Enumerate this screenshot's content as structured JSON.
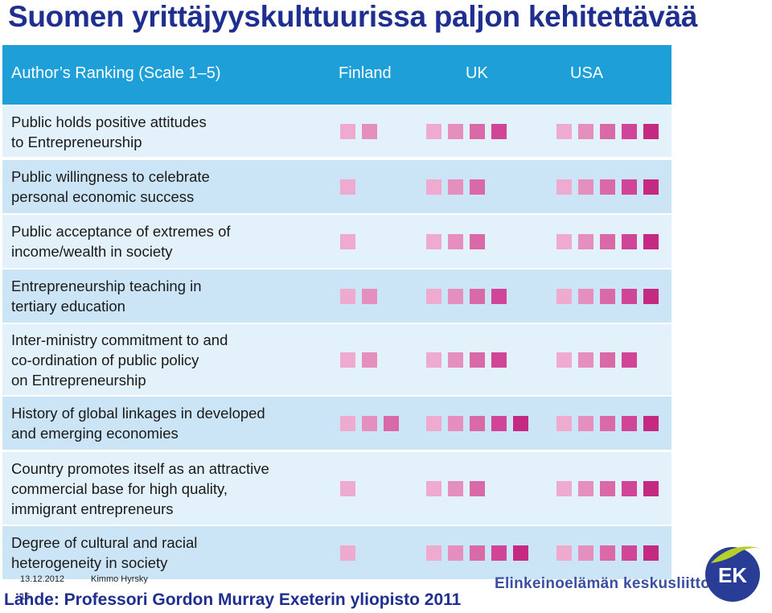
{
  "title": "Suomen yrittäjyyskulttuurissa paljon kehitettävää",
  "chart_data": {
    "type": "table",
    "header": {
      "criterion": "Author’s Ranking (Scale 1–5)",
      "countries": [
        "Finland",
        "UK",
        "USA"
      ]
    },
    "scale": [
      1,
      5
    ],
    "rows": [
      {
        "label": "Public holds positive attitudes\nto Entrepreneurship",
        "values": [
          2,
          4,
          5
        ]
      },
      {
        "label": "Public willingness to celebrate\npersonal economic success",
        "values": [
          1,
          3,
          5
        ]
      },
      {
        "label": "Public acceptance of extremes of\nincome/wealth in society",
        "values": [
          1,
          3,
          5
        ]
      },
      {
        "label": "Entrepreneurship teaching in\ntertiary education",
        "values": [
          2,
          4,
          5
        ]
      },
      {
        "label": "Inter-ministry commitment to and\nco-ordination of public policy\non Entrepreneurship",
        "values": [
          2,
          4,
          4
        ]
      },
      {
        "label": "History of global linkages in developed\nand emerging economies",
        "values": [
          3,
          5,
          5
        ]
      },
      {
        "label": "Country promotes itself as an attractive\ncommercial base for high quality,\nimmigrant entrepreneurs",
        "values": [
          1,
          3,
          5
        ]
      },
      {
        "label": "Degree of cultural and racial\nheterogeneity in society",
        "values": [
          1,
          5,
          5
        ]
      }
    ],
    "colors": {
      "header": "#1e9fd8",
      "row_light": "#e3f1fa",
      "row_dark": "#cce5f6",
      "squares": [
        "#eeabcf",
        "#e48fbd",
        "#da6aa7",
        "#d04597",
        "#c42a82"
      ]
    }
  },
  "footer": {
    "date": "13.12.2012",
    "author": "Kimmo Hyrsky",
    "page": "15",
    "source": "Lähde: Professori Gordon Murray Exeterin yliopisto 2011",
    "brand": "Elinkeinoelämän keskusliitto",
    "logo_text": "EK"
  }
}
